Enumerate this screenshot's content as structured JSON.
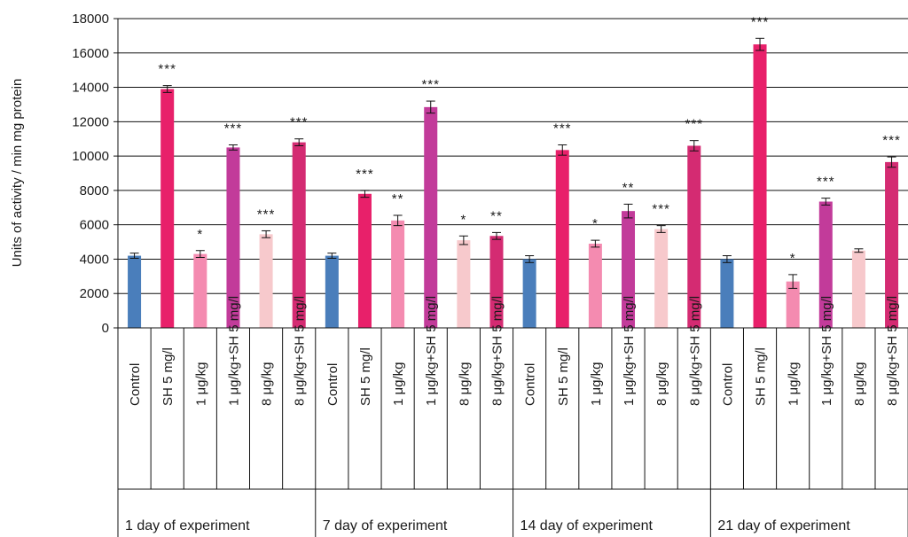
{
  "chart_data": {
    "type": "bar",
    "ylabel": "Units of activity / min mg protein",
    "ylim": [
      0,
      18000
    ],
    "yticks": [
      0,
      2000,
      4000,
      6000,
      8000,
      10000,
      12000,
      14000,
      16000,
      18000
    ],
    "grid": true,
    "groups": [
      {
        "label": "1  day of experiment",
        "bars": [
          {
            "category": "Control",
            "value": 4200,
            "error": 150,
            "sig": "",
            "color": "#4a7ebb"
          },
          {
            "category": "SH 5 mg/l",
            "value": 13900,
            "error": 200,
            "sig": "***",
            "color": "#e8206a"
          },
          {
            "category": "1 μg/kg",
            "value": 4300,
            "error": 200,
            "sig": "*",
            "color": "#f48bb0"
          },
          {
            "category": "1 μg/kg+SH 5 mg/l",
            "value": 10500,
            "error": 150,
            "sig": "***",
            "color": "#c23b9a"
          },
          {
            "category": "8 μg/kg",
            "value": 5450,
            "error": 200,
            "sig": "***",
            "color": "#f7c9cc"
          },
          {
            "category": "8 μg/kg+SH 5 mg/l",
            "value": 10800,
            "error": 200,
            "sig": "***",
            "color": "#d42b72"
          }
        ]
      },
      {
        "label": "7  day of experiment",
        "bars": [
          {
            "category": "Control",
            "value": 4200,
            "error": 150,
            "sig": "",
            "color": "#4a7ebb"
          },
          {
            "category": "SH 5 mg/l",
            "value": 7800,
            "error": 200,
            "sig": "***",
            "color": "#e8206a"
          },
          {
            "category": "1 μg/kg",
            "value": 6250,
            "error": 300,
            "sig": "**",
            "color": "#f48bb0"
          },
          {
            "category": "1 μg/kg+SH 5 mg/l",
            "value": 12850,
            "error": 350,
            "sig": "***",
            "color": "#c23b9a"
          },
          {
            "category": "8 μg/kg",
            "value": 5100,
            "error": 250,
            "sig": "*",
            "color": "#f7c9cc"
          },
          {
            "category": "8 μg/kg+SH 5 mg/l",
            "value": 5350,
            "error": 200,
            "sig": "**",
            "color": "#d42b72"
          }
        ]
      },
      {
        "label": "14  day of experiment",
        "bars": [
          {
            "category": "Control",
            "value": 4000,
            "error": 200,
            "sig": "",
            "color": "#4a7ebb"
          },
          {
            "category": "SH 5 mg/l",
            "value": 10350,
            "error": 300,
            "sig": "***",
            "color": "#e8206a"
          },
          {
            "category": "1 μg/kg",
            "value": 4900,
            "error": 200,
            "sig": "*",
            "color": "#f48bb0"
          },
          {
            "category": "1 μg/kg+SH 5 mg/l",
            "value": 6800,
            "error": 400,
            "sig": "**",
            "color": "#c23b9a"
          },
          {
            "category": "8 μg/kg",
            "value": 5750,
            "error": 200,
            "sig": "***",
            "color": "#f7c9cc"
          },
          {
            "category": "8 μg/kg+SH 5 mg/l",
            "value": 10600,
            "error": 300,
            "sig": "***",
            "color": "#d42b72"
          }
        ]
      },
      {
        "label": "21  day of experiment",
        "bars": [
          {
            "category": "Control",
            "value": 4000,
            "error": 200,
            "sig": "",
            "color": "#4a7ebb"
          },
          {
            "category": "SH 5 mg/l",
            "value": 16500,
            "error": 350,
            "sig": "***",
            "color": "#e8206a"
          },
          {
            "category": "1 μg/kg",
            "value": 2700,
            "error": 400,
            "sig": "*",
            "color": "#f48bb0"
          },
          {
            "category": "1 μg/kg+SH 5 mg/l",
            "value": 7350,
            "error": 200,
            "sig": "***",
            "color": "#c23b9a"
          },
          {
            "category": "8 μg/kg",
            "value": 4500,
            "error": 100,
            "sig": "",
            "color": "#f7c9cc"
          },
          {
            "category": "8 μg/kg+SH 5 mg/l",
            "value": 9650,
            "error": 300,
            "sig": "***",
            "color": "#d42b72"
          }
        ]
      }
    ]
  }
}
